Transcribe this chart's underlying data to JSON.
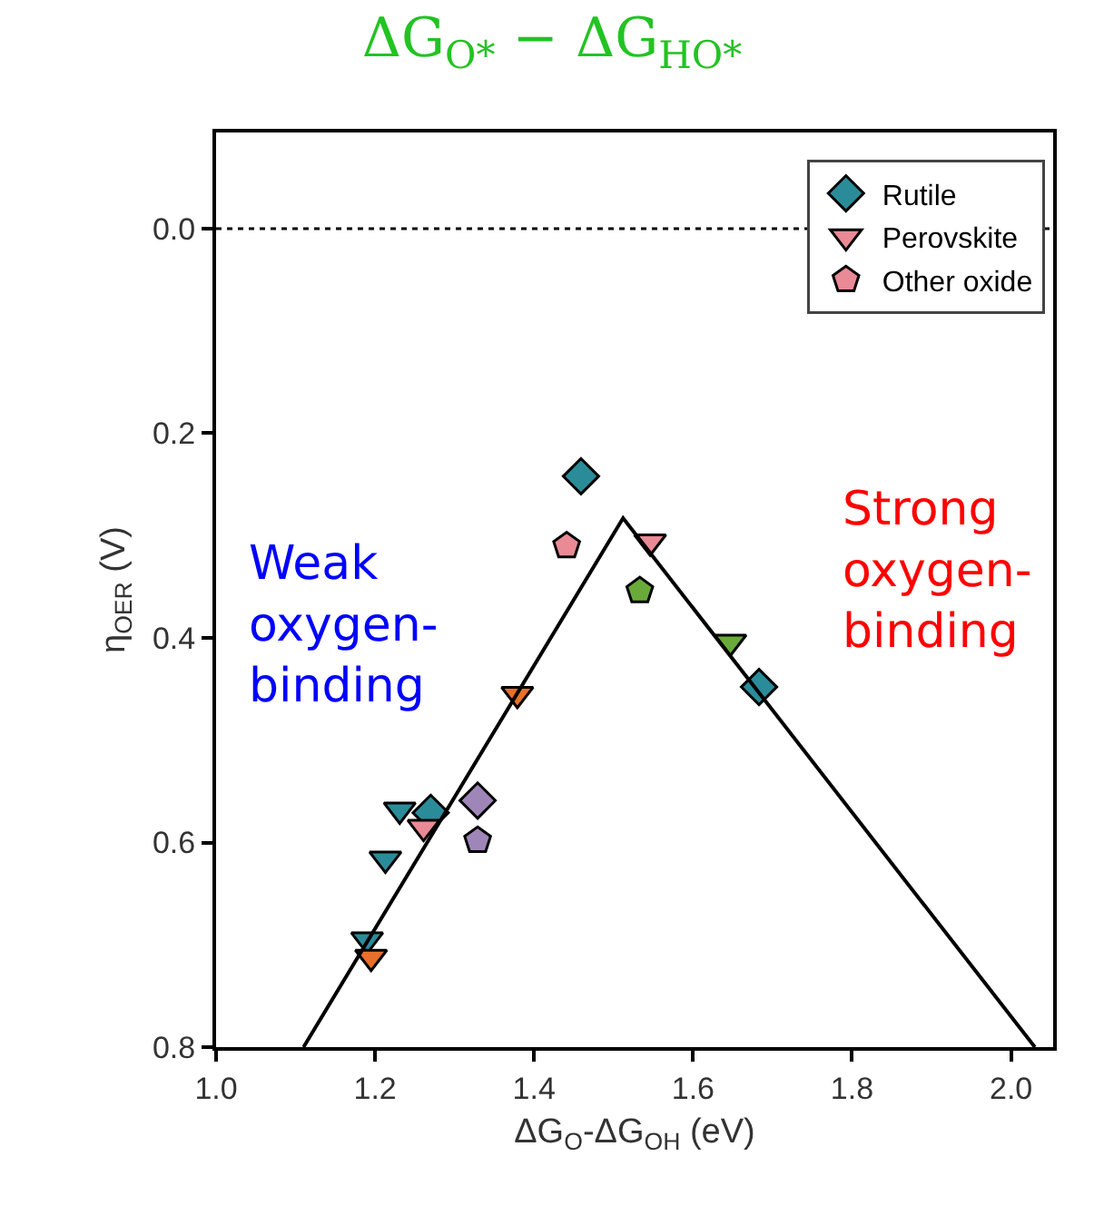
{
  "chart_data": {
    "type": "scatter",
    "title": "ΔG$_{O*}$ − ΔG$_{HO*}$",
    "xlabel": "ΔG$_{O}$-ΔG$_{OH}$ (eV)",
    "ylabel": "η$_{OER}$ (V)",
    "xlim": [
      1.0,
      2.053
    ],
    "xticks": [
      {
        "value": 1.0,
        "label": "1.0"
      },
      {
        "value": 1.2,
        "label": "1.2"
      },
      {
        "value": 1.4,
        "label": "1.4"
      },
      {
        "value": 1.6,
        "label": "1.6"
      },
      {
        "value": 1.8,
        "label": "1.8"
      },
      {
        "value": 2.0,
        "label": "2.0"
      }
    ],
    "ylim": [
      0.8,
      -0.094
    ],
    "yticks": [
      {
        "value": 0.0,
        "label": "0.0"
      },
      {
        "value": 0.2,
        "label": "0.2"
      },
      {
        "value": 0.4,
        "label": "0.4"
      },
      {
        "value": 0.6,
        "label": "0.6"
      },
      {
        "value": 0.8,
        "label": "0.8"
      }
    ],
    "legend": "top right",
    "series": [
      {
        "name": "Rutile",
        "marker": "diamond",
        "color": "#2b8c99",
        "x": [
          1.459,
          1.683,
          1.27,
          1.329
        ],
        "values": [
          0.242,
          0.448,
          0.571,
          0.559
        ],
        "colors": [
          "#2b8c99",
          "#2b8c99",
          "#2b8c99",
          "#9f86b8"
        ]
      },
      {
        "name": "Perovskite",
        "marker": "triangle-down",
        "color": "#e98a96",
        "x": [
          1.546,
          1.647,
          1.379,
          1.231,
          1.261,
          1.213,
          1.19,
          1.195
        ],
        "values": [
          0.306,
          0.404,
          0.455,
          0.568,
          0.585,
          0.616,
          0.695,
          0.712
        ],
        "colors": [
          "#e98a96",
          "#6aaa3a",
          "#e8702a",
          "#2b8c99",
          "#e98a96",
          "#2b8c99",
          "#2b8c99",
          "#e8702a"
        ]
      },
      {
        "name": "Other oxide",
        "color": "#e98a96",
        "x": [
          1.441,
          1.533,
          1.329
        ],
        "values": [
          0.31,
          0.354,
          0.598
        ],
        "colors": [
          "#e98a96",
          "#6aaa3a",
          "#9f86b8"
        ]
      },
      {
        "type": "line",
        "color": "#000000",
        "marker": "none",
        "x": [
          1.11,
          1.512,
          2.03
        ],
        "values": [
          0.8,
          0.283,
          0.8
        ]
      }
    ],
    "ref_lines": [
      {
        "axis": "y",
        "value": 0.0,
        "color": "#000000",
        "line_style": "dotted"
      }
    ],
    "annotations": [
      "Weak\noxygen-\nbinding",
      "Strong\noxygen-\nbinding"
    ]
  }
}
